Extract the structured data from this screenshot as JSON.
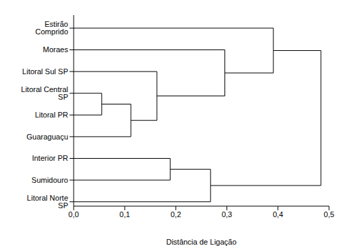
{
  "chart_data": {
    "type": "dendrogram",
    "x_label": "Distância de Ligação",
    "labels": [
      "Estirão Comprido",
      "Moraes",
      "Litoral Sul SP",
      "Litoral Central SP",
      "Litoral PR",
      "Guaraguaçu",
      "Interior PR",
      "Sumidouro",
      "Litoral Norte SP"
    ],
    "merges": [
      {
        "children": [
          3,
          4
        ],
        "distance": 0.055
      },
      {
        "children": [
          9,
          5
        ],
        "distance": 0.112
      },
      {
        "children": [
          2,
          10
        ],
        "distance": 0.163
      },
      {
        "children": [
          1,
          11
        ],
        "distance": 0.296
      },
      {
        "children": [
          0,
          12
        ],
        "distance": 0.391
      },
      {
        "children": [
          6,
          7
        ],
        "distance": 0.189
      },
      {
        "children": [
          14,
          8
        ],
        "distance": 0.268
      },
      {
        "children": [
          13,
          15
        ],
        "distance": 0.484
      }
    ],
    "xlim": [
      0,
      0.5
    ],
    "xticks": [
      {
        "value": 0,
        "label": "0,0"
      },
      {
        "value": 0.1,
        "label": "0,1"
      },
      {
        "value": 0.2,
        "label": "0,2"
      },
      {
        "value": 0.3,
        "label": "0,3"
      },
      {
        "value": 0.4,
        "label": "0,4"
      },
      {
        "value": 0.5,
        "label": "0,5"
      }
    ],
    "color": "#000000"
  }
}
